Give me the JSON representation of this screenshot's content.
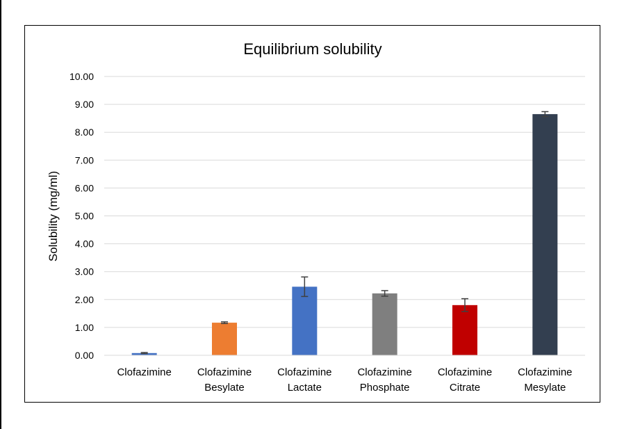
{
  "chart_data": {
    "type": "bar",
    "title": "Equilibrium solubility",
    "xlabel": "",
    "ylabel": "Solubility (mg/ml)",
    "ylim": [
      0,
      10
    ],
    "yticks": [
      "0.00",
      "1.00",
      "2.00",
      "3.00",
      "4.00",
      "5.00",
      "6.00",
      "7.00",
      "8.00",
      "9.00",
      "10.00"
    ],
    "grid": true,
    "legend": "none",
    "categories": [
      [
        "Clofazimine"
      ],
      [
        "Clofazimine",
        "Besylate"
      ],
      [
        "Clofazimine",
        "Lactate"
      ],
      [
        "Clofazimine",
        "Phosphate"
      ],
      [
        "Clofazimine",
        "Citrate"
      ],
      [
        "Clofazimine",
        "Mesylate"
      ]
    ],
    "values": [
      0.08,
      1.17,
      2.46,
      2.22,
      1.8,
      8.65
    ],
    "errors": [
      0.02,
      0.03,
      0.35,
      0.1,
      0.23,
      0.09
    ],
    "colors": [
      "#4472C4",
      "#ED7D31",
      "#4472C4",
      "#7F7F7F",
      "#C00000",
      "#333F50"
    ]
  }
}
